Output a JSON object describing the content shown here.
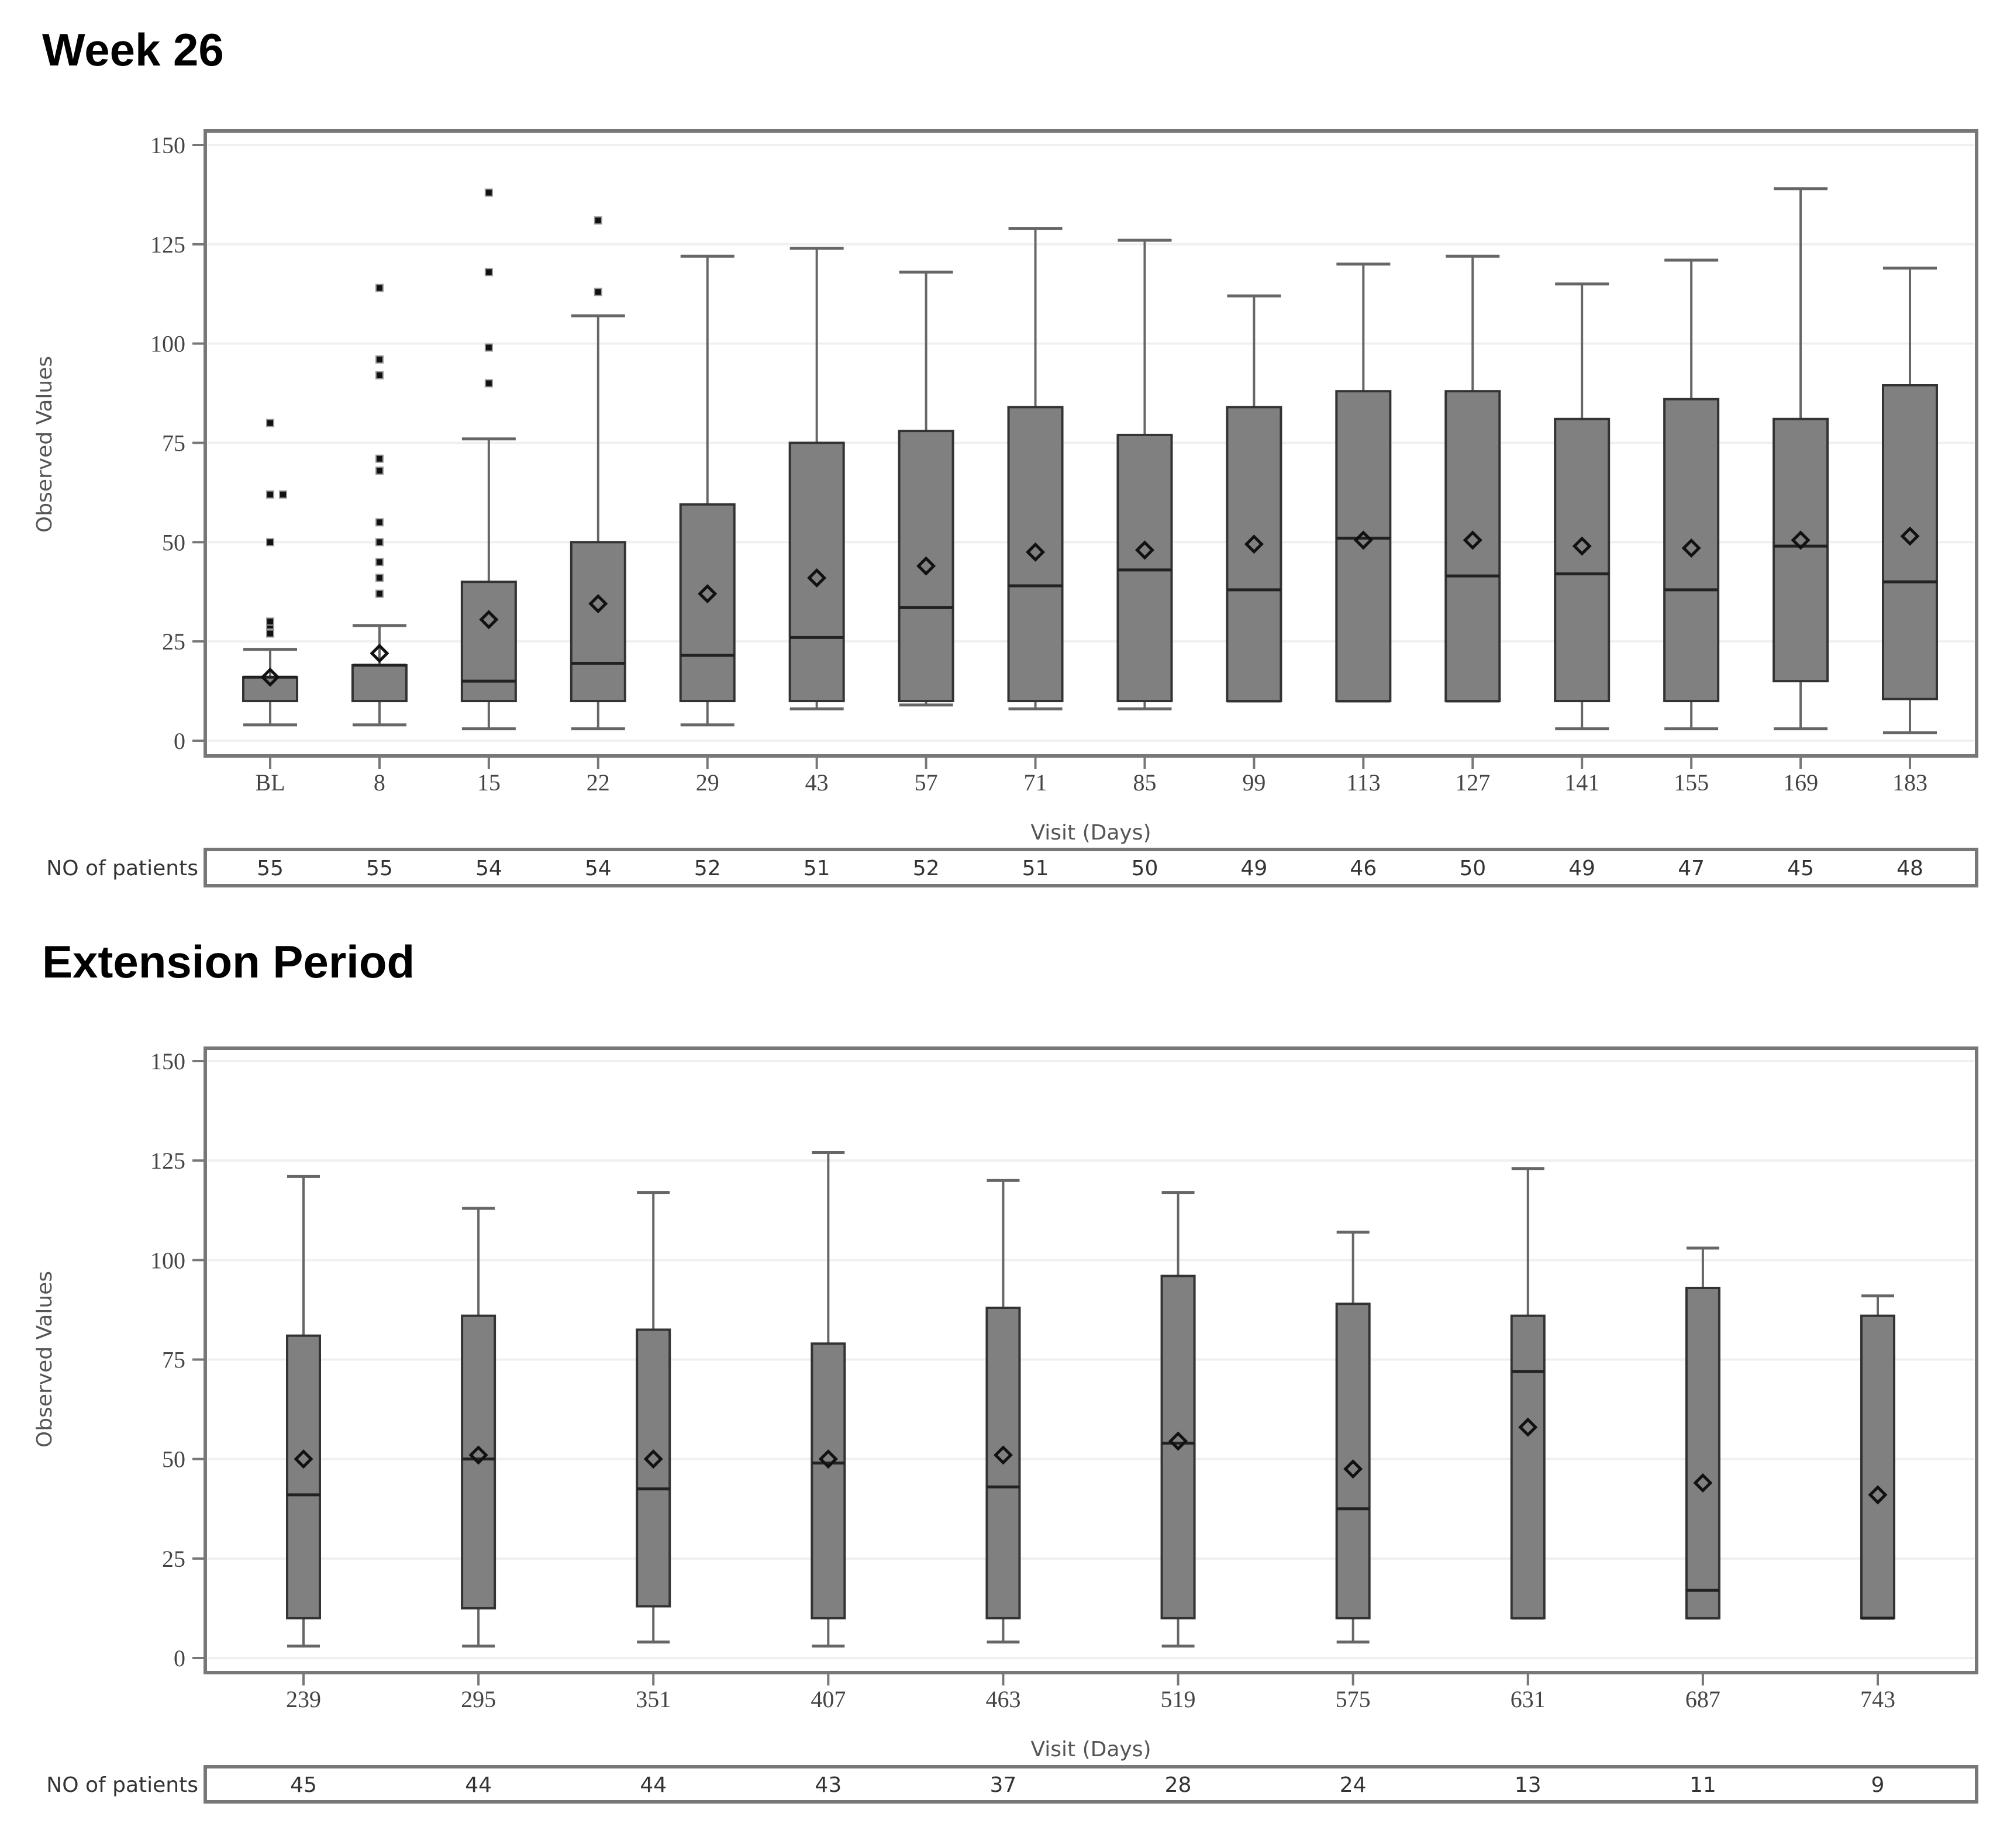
{
  "sections": [
    {
      "title": "Week 26"
    },
    {
      "title": "Extension Period"
    }
  ],
  "colors": {
    "box_fill": "#808080",
    "box_stroke": "#333333",
    "whisker": "#666666",
    "frame": "#777777",
    "grid": "#f0f0f0",
    "mean_marker": "#111111"
  },
  "chart_data": [
    {
      "type": "boxplot",
      "title": "Week 26",
      "xlabel": "Visit (Days)",
      "ylabel": "Observed Values",
      "ylim": [
        0,
        150
      ],
      "yticks": [
        0,
        25,
        50,
        75,
        100,
        125,
        150
      ],
      "grid": true,
      "categories": [
        "BL",
        "8",
        "15",
        "22",
        "29",
        "43",
        "57",
        "71",
        "85",
        "99",
        "113",
        "127",
        "141",
        "155",
        "169",
        "183"
      ],
      "series": [
        {
          "name": "BL",
          "whisker_low": 4,
          "q1": 10,
          "median": 16,
          "q3": 16,
          "whisker_high": 23,
          "mean": 16,
          "outliers": [
            27,
            29,
            30,
            50,
            62,
            62,
            80
          ]
        },
        {
          "name": "8",
          "whisker_low": 4,
          "q1": 10,
          "median": 19,
          "q3": 19,
          "whisker_high": 29,
          "mean": 22,
          "outliers": [
            37,
            41,
            45,
            50,
            55,
            68,
            71,
            92,
            96,
            114
          ]
        },
        {
          "name": "15",
          "whisker_low": 3,
          "q1": 10,
          "median": 15,
          "q3": 40,
          "whisker_high": 76,
          "mean": 30.5,
          "outliers": [
            90,
            99,
            118,
            138
          ]
        },
        {
          "name": "22",
          "whisker_low": 3,
          "q1": 10,
          "median": 19.5,
          "q3": 50,
          "whisker_high": 107,
          "mean": 34.5,
          "outliers": [
            113,
            131
          ]
        },
        {
          "name": "29",
          "whisker_low": 4,
          "q1": 10,
          "median": 21.5,
          "q3": 59.5,
          "whisker_high": 122,
          "mean": 37,
          "outliers": []
        },
        {
          "name": "43",
          "whisker_low": 8,
          "q1": 10,
          "median": 26,
          "q3": 75,
          "whisker_high": 124,
          "mean": 41,
          "outliers": []
        },
        {
          "name": "57",
          "whisker_low": 9,
          "q1": 10,
          "median": 33.5,
          "q3": 78,
          "whisker_high": 118,
          "mean": 44,
          "outliers": []
        },
        {
          "name": "71",
          "whisker_low": 8,
          "q1": 10,
          "median": 39,
          "q3": 84,
          "whisker_high": 129,
          "mean": 47.5,
          "outliers": []
        },
        {
          "name": "85",
          "whisker_low": 8,
          "q1": 10,
          "median": 43,
          "q3": 77,
          "whisker_high": 126,
          "mean": 48,
          "outliers": []
        },
        {
          "name": "99",
          "whisker_low": 10,
          "q1": 10,
          "median": 38,
          "q3": 84,
          "whisker_high": 112,
          "mean": 49.5,
          "outliers": []
        },
        {
          "name": "113",
          "whisker_low": 10,
          "q1": 10,
          "median": 51,
          "q3": 88,
          "whisker_high": 120,
          "mean": 50.5,
          "outliers": []
        },
        {
          "name": "127",
          "whisker_low": 10,
          "q1": 10,
          "median": 41.5,
          "q3": 88,
          "whisker_high": 122,
          "mean": 50.5,
          "outliers": []
        },
        {
          "name": "141",
          "whisker_low": 3,
          "q1": 10,
          "median": 42,
          "q3": 81,
          "whisker_high": 115,
          "mean": 49,
          "outliers": []
        },
        {
          "name": "155",
          "whisker_low": 3,
          "q1": 10,
          "median": 38,
          "q3": 86,
          "whisker_high": 121,
          "mean": 48.5,
          "outliers": []
        },
        {
          "name": "169",
          "whisker_low": 3,
          "q1": 15,
          "median": 49,
          "q3": 81,
          "whisker_high": 139,
          "mean": 50.5,
          "outliers": []
        },
        {
          "name": "183",
          "whisker_low": 2,
          "q1": 10.5,
          "median": 40,
          "q3": 89.5,
          "whisker_high": 119,
          "mean": 51.5,
          "outliers": []
        }
      ],
      "patient_counts_label": "NO of patients",
      "patient_counts": [
        55,
        55,
        54,
        54,
        52,
        51,
        52,
        51,
        50,
        49,
        46,
        50,
        49,
        47,
        45,
        48
      ]
    },
    {
      "type": "boxplot",
      "title": "Extension Period",
      "xlabel": "Visit (Days)",
      "ylabel": "Observed Values",
      "ylim": [
        0,
        150
      ],
      "yticks": [
        0,
        25,
        50,
        75,
        100,
        125,
        150
      ],
      "grid": true,
      "categories": [
        "239",
        "295",
        "351",
        "407",
        "463",
        "519",
        "575",
        "631",
        "687",
        "743"
      ],
      "series": [
        {
          "name": "239",
          "whisker_low": 3,
          "q1": 10,
          "median": 41,
          "q3": 81,
          "whisker_high": 121,
          "mean": 50,
          "outliers": []
        },
        {
          "name": "295",
          "whisker_low": 3,
          "q1": 12.5,
          "median": 50,
          "q3": 86,
          "whisker_high": 113,
          "mean": 51,
          "outliers": []
        },
        {
          "name": "351",
          "whisker_low": 4,
          "q1": 13,
          "median": 42.5,
          "q3": 82.5,
          "whisker_high": 117,
          "mean": 50,
          "outliers": []
        },
        {
          "name": "407",
          "whisker_low": 3,
          "q1": 10,
          "median": 49,
          "q3": 79,
          "whisker_high": 127,
          "mean": 50,
          "outliers": []
        },
        {
          "name": "463",
          "whisker_low": 4,
          "q1": 10,
          "median": 43,
          "q3": 88,
          "whisker_high": 120,
          "mean": 51,
          "outliers": []
        },
        {
          "name": "519",
          "whisker_low": 3,
          "q1": 10,
          "median": 54,
          "q3": 96,
          "whisker_high": 117,
          "mean": 54.5,
          "outliers": []
        },
        {
          "name": "575",
          "whisker_low": 4,
          "q1": 10,
          "median": 37.5,
          "q3": 89,
          "whisker_high": 107,
          "mean": 47.5,
          "outliers": []
        },
        {
          "name": "631",
          "whisker_low": 10,
          "q1": 10,
          "median": 72,
          "q3": 86,
          "whisker_high": 123,
          "mean": 58,
          "outliers": []
        },
        {
          "name": "687",
          "whisker_low": 10,
          "q1": 10,
          "median": 17,
          "q3": 93,
          "whisker_high": 103,
          "mean": 44,
          "outliers": []
        },
        {
          "name": "743",
          "whisker_low": 10,
          "q1": 10,
          "median": 10,
          "q3": 86,
          "whisker_high": 91,
          "mean": 41,
          "outliers": []
        }
      ],
      "patient_counts_label": "NO of patients",
      "patient_counts": [
        45,
        44,
        44,
        43,
        37,
        28,
        24,
        13,
        11,
        9
      ]
    }
  ]
}
